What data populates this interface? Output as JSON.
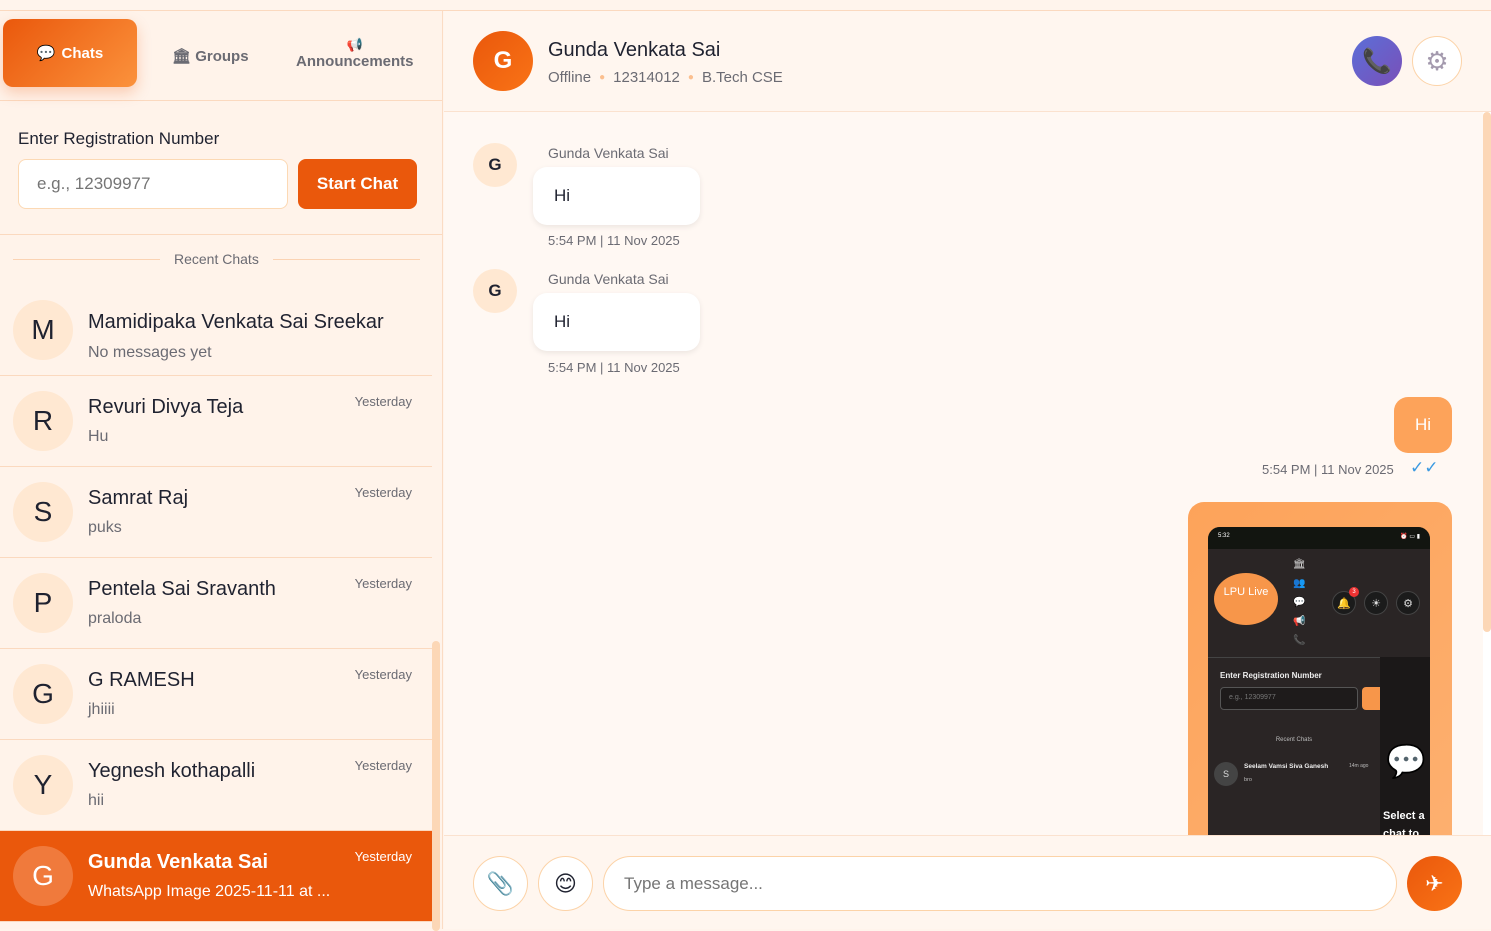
{
  "sidebar": {
    "tabs": {
      "chats": "Chats",
      "groups": "Groups",
      "announcements": "Announcements"
    },
    "registration": {
      "label": "Enter Registration Number",
      "placeholder": "e.g., 12309977",
      "start_button": "Start Chat"
    },
    "recent_label": "Recent Chats",
    "chats": [
      {
        "initial": "M",
        "name": "Mamidipaka Venkata Sai Sreekar",
        "preview": "No messages yet",
        "time": ""
      },
      {
        "initial": "R",
        "name": "Revuri Divya Teja",
        "preview": "Hu",
        "time": "Yesterday"
      },
      {
        "initial": "S",
        "name": "Samrat Raj",
        "preview": "puks",
        "time": "Yesterday"
      },
      {
        "initial": "P",
        "name": "Pentela Sai Sravanth",
        "preview": "praloda",
        "time": "Yesterday"
      },
      {
        "initial": "G",
        "name": "G RAMESH",
        "preview": "jhiiii",
        "time": "Yesterday"
      },
      {
        "initial": "Y",
        "name": "Yegnesh kothapalli",
        "preview": "hii",
        "time": "Yesterday"
      },
      {
        "initial": "G",
        "name": "Gunda Venkata Sai",
        "preview": "WhatsApp Image 2025-11-11 at ...",
        "time": "Yesterday",
        "active": true
      }
    ]
  },
  "header": {
    "initial": "G",
    "name": "Gunda Venkata Sai",
    "status": "Offline",
    "reg_no": "12314012",
    "program": "B.Tech CSE"
  },
  "messages": [
    {
      "direction": "in",
      "initial": "G",
      "sender": "Gunda Venkata Sai",
      "text": "Hi",
      "time": "5:54 PM | 11 Nov 2025"
    },
    {
      "direction": "in",
      "initial": "G",
      "sender": "Gunda Venkata Sai",
      "text": "Hi",
      "time": "5:54 PM | 11 Nov 2025"
    },
    {
      "direction": "out",
      "text": "Hi",
      "time": "5:54 PM | 11 Nov 2025",
      "ticks": "✓✓"
    }
  ],
  "image_message": {
    "status_time": "5:32",
    "logo": "LPU Live",
    "reg_label": "Enter Registration Number",
    "placeholder": "e.g., 12309977",
    "badge": "3",
    "recent": "Recent Chats",
    "chat_initial": "S",
    "chat_name": "Seelam Vamsi Siva Ganesh",
    "chat_time": "14m ago",
    "chat_preview": "bro",
    "select_text": "Select a chat to"
  },
  "composer": {
    "placeholder": "Type a message..."
  },
  "colors": {
    "accent": "#ea580c",
    "call": "#5b6fd8",
    "tick": "#3b9ae1"
  }
}
